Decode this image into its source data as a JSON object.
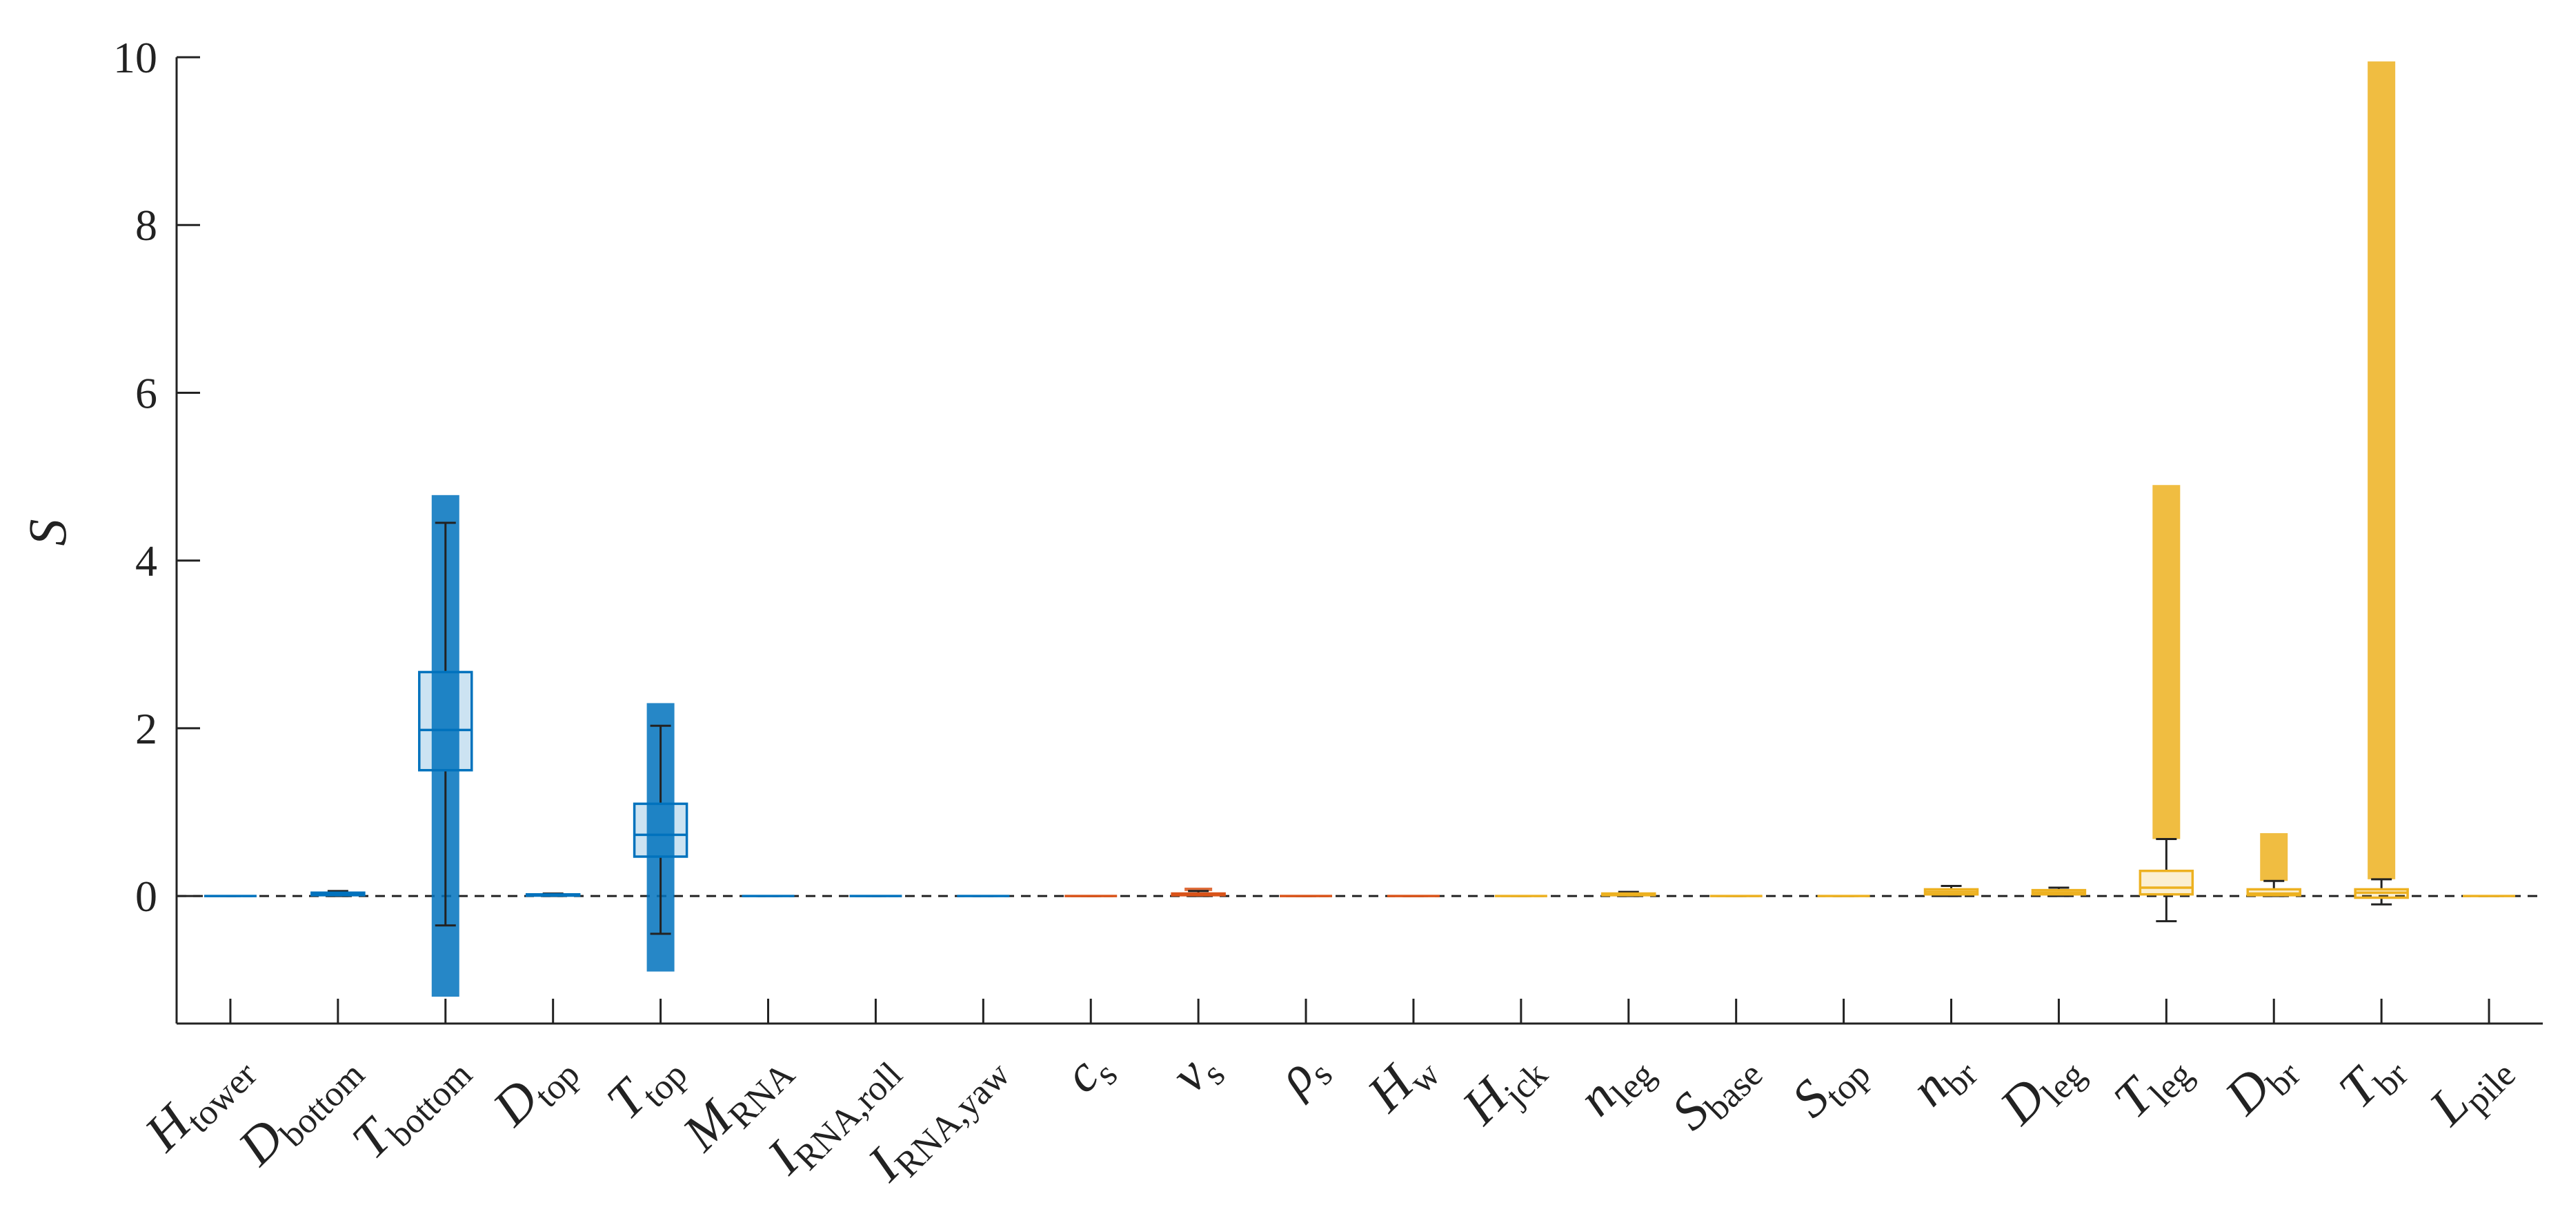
{
  "chart_data": {
    "type": "box",
    "y_label": "S",
    "ylim": [
      -1.52,
      10
    ],
    "yticks": [
      0,
      2,
      4,
      6,
      8,
      10
    ],
    "hline": 0,
    "categories": [
      {
        "base": "H",
        "sub": "tower"
      },
      {
        "base": "D",
        "sub": "bottom"
      },
      {
        "base": "T",
        "sub": "bottom"
      },
      {
        "base": "D",
        "sub": "top"
      },
      {
        "base": "T",
        "sub": "top"
      },
      {
        "base": "M",
        "sub": "RNA"
      },
      {
        "base": "I",
        "sub": "RNA,roll"
      },
      {
        "base": "I",
        "sub": "RNA,yaw"
      },
      {
        "base": "c",
        "sub": "s"
      },
      {
        "base": "ν",
        "sub": "s"
      },
      {
        "base": "ρ",
        "sub": "s"
      },
      {
        "base": "H",
        "sub": "w"
      },
      {
        "base": "H",
        "sub": "jck"
      },
      {
        "base": "n",
        "sub": "leg"
      },
      {
        "base": "S",
        "sub": "base"
      },
      {
        "base": "S",
        "sub": "top"
      },
      {
        "base": "n",
        "sub": "br"
      },
      {
        "base": "D",
        "sub": "leg"
      },
      {
        "base": "T",
        "sub": "leg"
      },
      {
        "base": "D",
        "sub": "br"
      },
      {
        "base": "T",
        "sub": "br"
      },
      {
        "base": "L",
        "sub": "pile"
      }
    ],
    "boxes": [
      {
        "color": "#0072BD",
        "whislo": 0,
        "q1": 0,
        "med": 0,
        "q3": 0,
        "whishi": 0,
        "outliers": null
      },
      {
        "color": "#0072BD",
        "whislo": 0,
        "q1": 0.01,
        "med": 0.02,
        "q3": 0.04,
        "whishi": 0.06,
        "outliers": null
      },
      {
        "color": "#0072BD",
        "whislo": -0.35,
        "q1": 1.5,
        "med": 1.98,
        "q3": 2.67,
        "whishi": 4.45,
        "outliers": [
          -1.2,
          4.78
        ]
      },
      {
        "color": "#0072BD",
        "whislo": 0,
        "q1": 0.005,
        "med": 0.01,
        "q3": 0.02,
        "whishi": 0.03,
        "outliers": null
      },
      {
        "color": "#0072BD",
        "whislo": -0.45,
        "q1": 0.47,
        "med": 0.73,
        "q3": 1.1,
        "whishi": 2.03,
        "outliers": [
          -0.9,
          2.3
        ]
      },
      {
        "color": "#0072BD",
        "whislo": 0,
        "q1": 0,
        "med": 0,
        "q3": 0,
        "whishi": 0,
        "outliers": null
      },
      {
        "color": "#0072BD",
        "whislo": 0,
        "q1": 0,
        "med": 0,
        "q3": 0,
        "whishi": 0,
        "outliers": null
      },
      {
        "color": "#0072BD",
        "whislo": 0,
        "q1": 0,
        "med": 0,
        "q3": 0,
        "whishi": 0,
        "outliers": null
      },
      {
        "color": "#D95319",
        "whislo": 0,
        "q1": 0,
        "med": 0,
        "q3": 0,
        "whishi": 0,
        "outliers": null
      },
      {
        "color": "#D95319",
        "whislo": 0,
        "q1": 0.01,
        "med": 0.02,
        "q3": 0.03,
        "whishi": 0.06,
        "outliers": [
          0.06,
          0.1
        ]
      },
      {
        "color": "#D95319",
        "whislo": 0,
        "q1": 0,
        "med": 0,
        "q3": 0,
        "whishi": 0,
        "outliers": null
      },
      {
        "color": "#D95319",
        "whislo": 0,
        "q1": 0,
        "med": 0,
        "q3": 0,
        "whishi": 0,
        "outliers": null
      },
      {
        "color": "#EDB120",
        "whislo": 0,
        "q1": 0,
        "med": 0,
        "q3": 0,
        "whishi": 0,
        "outliers": null
      },
      {
        "color": "#EDB120",
        "whislo": 0,
        "q1": 0.01,
        "med": 0.02,
        "q3": 0.03,
        "whishi": 0.05,
        "outliers": null
      },
      {
        "color": "#EDB120",
        "whislo": 0,
        "q1": 0,
        "med": 0,
        "q3": 0,
        "whishi": 0,
        "outliers": null
      },
      {
        "color": "#EDB120",
        "whislo": 0,
        "q1": 0,
        "med": 0,
        "q3": 0,
        "whishi": 0,
        "outliers": null
      },
      {
        "color": "#EDB120",
        "whislo": 0,
        "q1": 0.02,
        "med": 0.05,
        "q3": 0.08,
        "whishi": 0.12,
        "outliers": null
      },
      {
        "color": "#EDB120",
        "whislo": 0,
        "q1": 0.02,
        "med": 0.04,
        "q3": 0.07,
        "whishi": 0.1,
        "outliers": null
      },
      {
        "color": "#EDB120",
        "whislo": -0.3,
        "q1": 0.02,
        "med": 0.1,
        "q3": 0.3,
        "whishi": 0.68,
        "outliers": [
          0.68,
          4.9
        ]
      },
      {
        "color": "#EDB120",
        "whislo": 0,
        "q1": 0.01,
        "med": 0.03,
        "q3": 0.08,
        "whishi": 0.18,
        "outliers": [
          0.18,
          0.75
        ]
      },
      {
        "color": "#EDB120",
        "whislo": -0.1,
        "q1": -0.02,
        "med": 0.04,
        "q3": 0.08,
        "whishi": 0.2,
        "outliers": [
          0.2,
          9.95
        ]
      },
      {
        "color": "#EDB120",
        "whislo": 0,
        "q1": 0,
        "med": 0,
        "q3": 0,
        "whishi": 0,
        "outliers": null
      }
    ]
  }
}
